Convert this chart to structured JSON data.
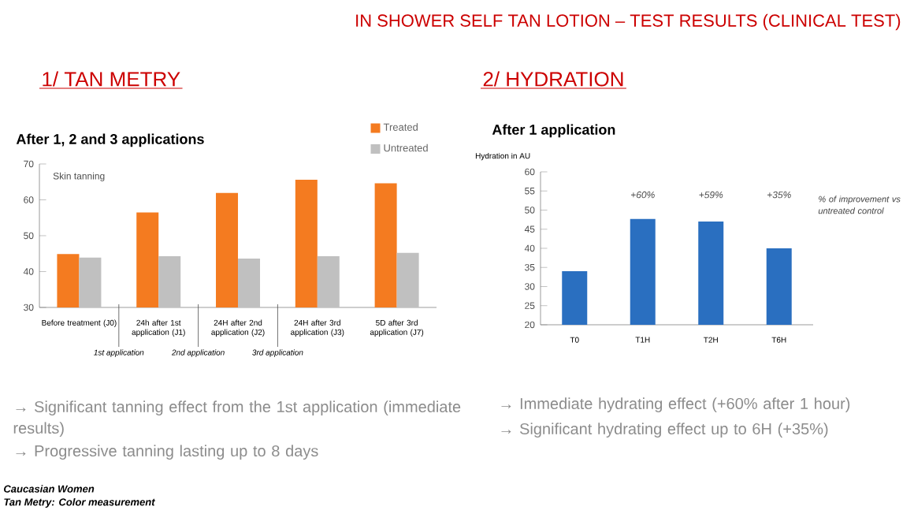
{
  "chart_data": [
    {
      "type": "bar",
      "title": "1/ TAN METRY",
      "subtitle": "After 1, 2 and 3 applications",
      "ylabel": "Skin tanning",
      "categories": [
        "Before treatment (J0)",
        "24h after 1st application (J1)",
        "24H after 2nd application (J2)",
        "24H after 3rd application (J3)",
        "5D after 3rd application (J7)"
      ],
      "series": [
        {
          "name": "Treated",
          "color": "#f47b20",
          "values": [
            44.9,
            56.5,
            61.9,
            65.6,
            64.6
          ]
        },
        {
          "name": "Untreated",
          "color": "#c0c0c0",
          "values": [
            43.9,
            44.3,
            43.6,
            44.3,
            45.2
          ]
        }
      ],
      "ylim": [
        30,
        70
      ],
      "yticks": [
        30,
        40,
        50,
        60,
        70
      ],
      "legend": "top right",
      "annotations": [
        "IN SHOWER SELF TAN LOTION – TEST RESULTS (CLINICAL TEST)",
        "1st application",
        "2nd application",
        "3rd application",
        "→ Significant tanning effect from the 1st application (immediate results)",
        "→ Progressive tanning lasting up to 8 days",
        "Caucasian Women",
        "Tan Metry: Color measurement"
      ]
    },
    {
      "type": "bar",
      "title": "2/ HYDRATION",
      "subtitle": "After 1 application",
      "ylabel": "Hydration in AU",
      "categories": [
        "T0",
        "T1H",
        "T2H",
        "T6H"
      ],
      "values": [
        34,
        47.7,
        47,
        40
      ],
      "color": "#2a6fc0",
      "ylim": [
        20,
        60
      ],
      "yticks": [
        20,
        25,
        30,
        35,
        40,
        45,
        50,
        55,
        60
      ],
      "annotations": [
        "+60%",
        "+59%",
        "+35%",
        "% of improvement vs untreated control",
        "→ Immediate hydrating effect (+60% after 1 hour)",
        "→ Significant hydrating effect up to 6H (+35%)"
      ]
    }
  ]
}
